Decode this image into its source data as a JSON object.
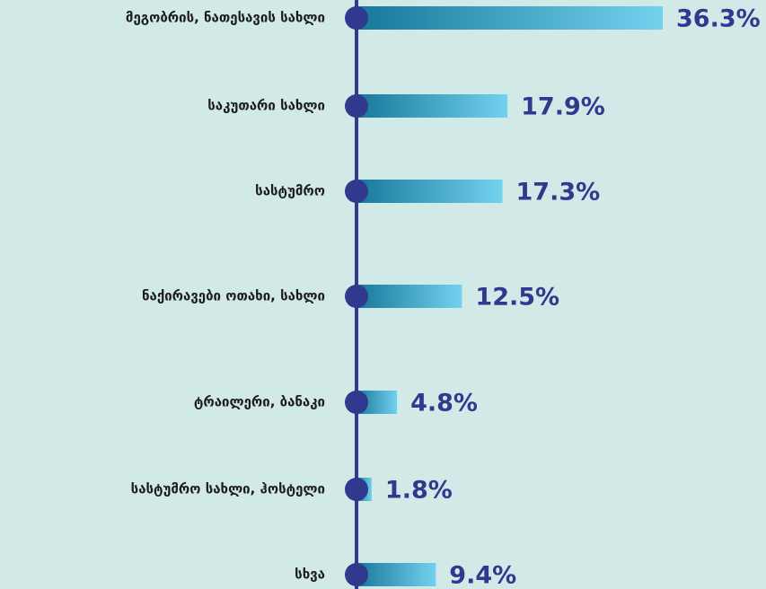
{
  "chart_data": {
    "type": "bar",
    "orientation": "horizontal",
    "categories": [
      "მეგობრის, ნათესავის სახლი",
      "საკუთარი სახლი",
      "სასტუმრო",
      "ნაქირავები ოთახი, სახლი",
      "ტრაილერი, ბანაკი",
      "სასტუმრო სახლი, ჰოსტელი",
      "სხვა"
    ],
    "values": [
      36.3,
      17.9,
      17.3,
      12.5,
      4.8,
      1.8,
      9.4
    ],
    "value_labels": [
      "36.3%",
      "17.9%",
      "17.3%",
      "12.5%",
      "4.8%",
      "1.8%",
      "9.4%"
    ],
    "color": [
      "#17789a",
      "#72d2ee"
    ],
    "axis_color": "#2f3a8f"
  }
}
